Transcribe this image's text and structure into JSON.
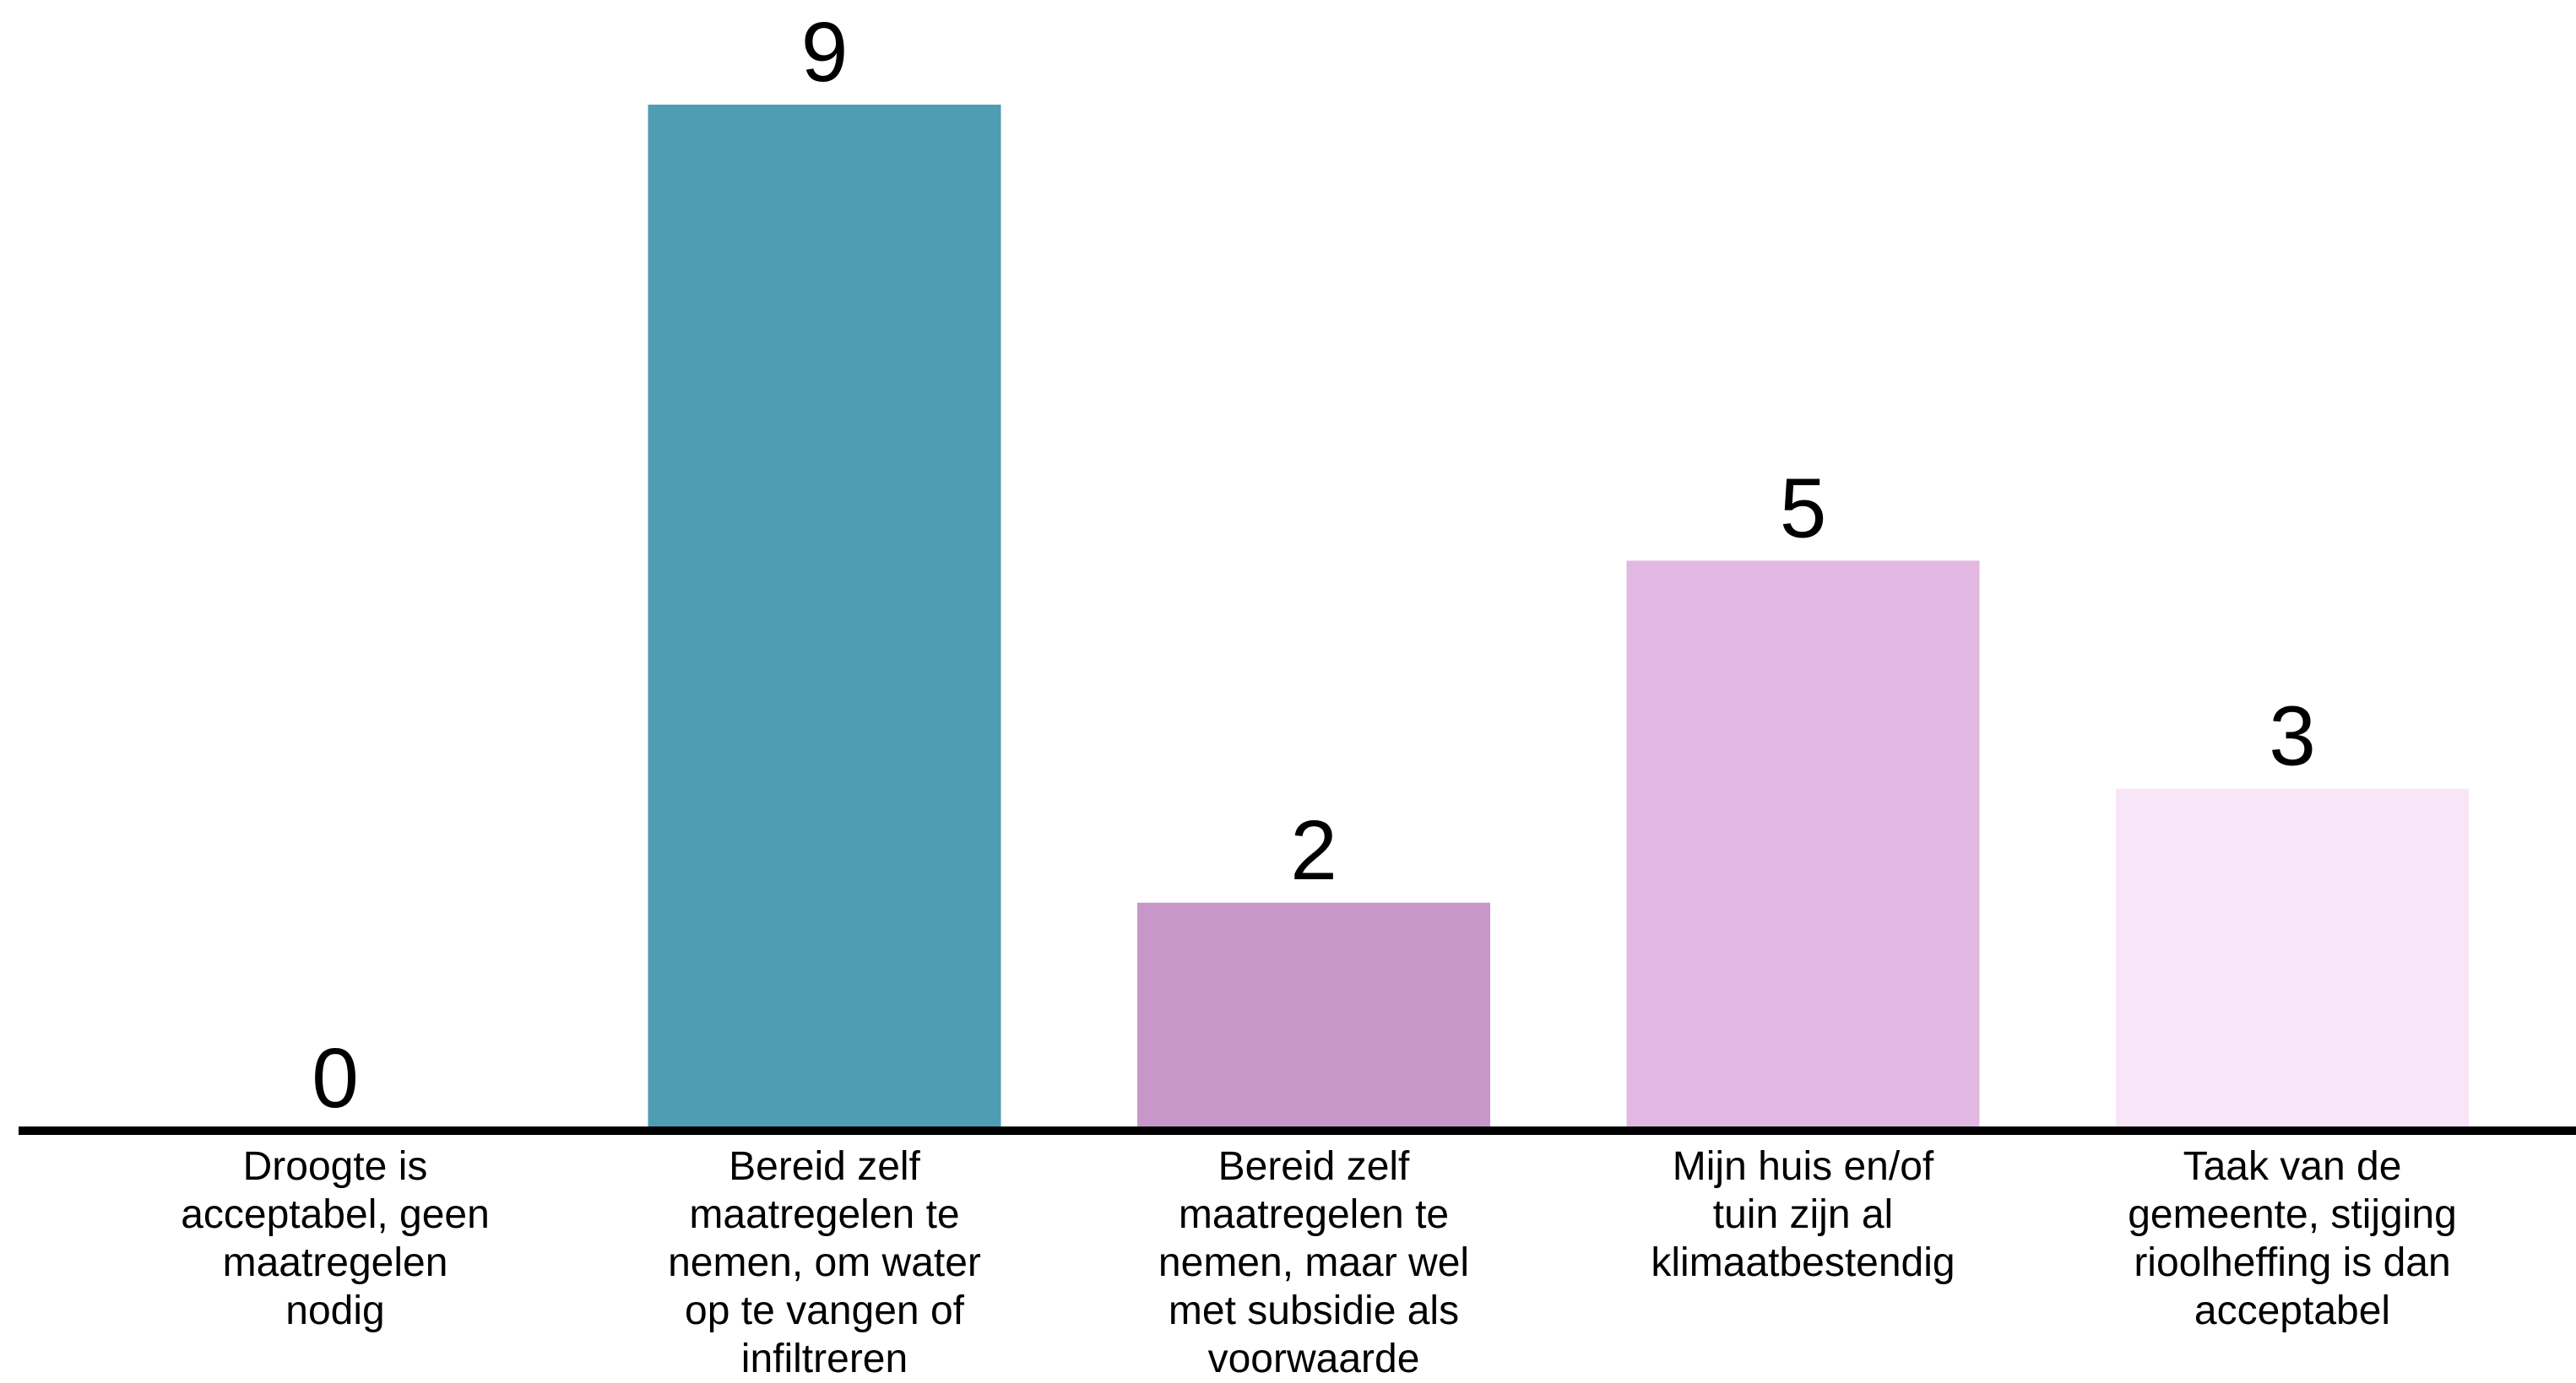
{
  "chart_data": {
    "type": "bar",
    "title": "",
    "xlabel": "",
    "ylabel": "",
    "ylim": [
      0,
      9
    ],
    "grid": false,
    "categories": [
      [
        "Droogte is",
        "acceptabel, geen",
        "maatregelen",
        "nodig"
      ],
      [
        "Bereid zelf",
        "maatregelen te",
        "nemen, om water",
        "op te vangen of",
        "infiltreren"
      ],
      [
        "Bereid zelf",
        "maatregelen te",
        "nemen, maar wel",
        "met subsidie als",
        "voorwaarde"
      ],
      [
        "Mijn huis en/of",
        "tuin zijn al",
        "klimaatbestendig"
      ],
      [
        "Taak van de",
        "gemeente, stijging",
        "rioolheffing is dan",
        "acceptabel"
      ]
    ],
    "values": [
      0,
      9,
      2,
      5,
      3
    ],
    "data_labels": [
      "0",
      "9",
      "2",
      "5",
      "3"
    ],
    "colors": [
      "#ffffff",
      "#4f9db2",
      "#c897ca",
      "#e2b8e2",
      "#f8e6f8"
    ],
    "axis_color": "#000000"
  }
}
